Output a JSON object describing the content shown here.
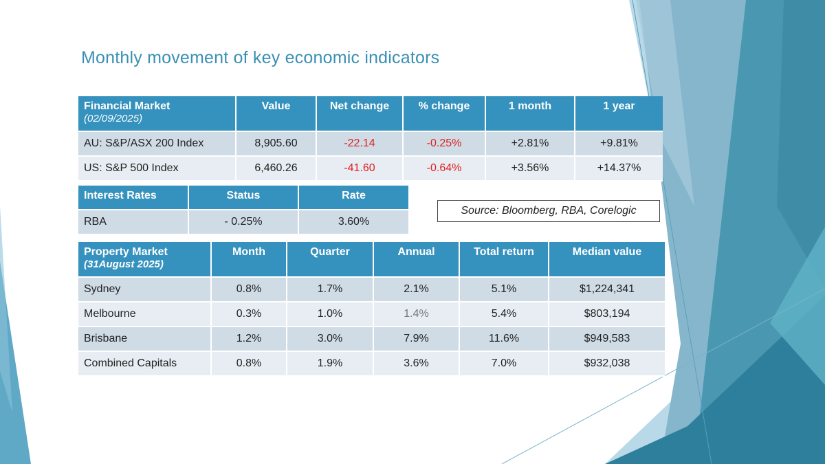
{
  "title": "Monthly movement of key economic indicators",
  "financial": {
    "headers": [
      "Financial Market",
      "Value",
      "Net change",
      "% change",
      "1 month",
      "1 year"
    ],
    "date": "(02/09/2025)",
    "rows": [
      [
        "AU:  S&P/ASX 200 Index",
        "8,905.60",
        "-22.14",
        "-0.25%",
        "+2.81%",
        "+9.81%"
      ],
      [
        "US:  S&P 500 Index",
        "6,460.26",
        "-41.60",
        "-0.64%",
        "+3.56%",
        "+14.37%"
      ]
    ]
  },
  "rates": {
    "headers": [
      "Interest Rates",
      "Status",
      "Rate"
    ],
    "rows": [
      [
        "RBA",
        "- 0.25%",
        "3.60%"
      ]
    ]
  },
  "source": "Source:  Bloomberg, RBA, Corelogic",
  "property": {
    "headers": [
      "Property Market",
      "Month",
      "Quarter",
      "Annual",
      "Total return",
      "Median value"
    ],
    "date": "(31August 2025)",
    "rows": [
      [
        "Sydney",
        "0.8%",
        "1.7%",
        "2.1%",
        "5.1%",
        "$1,224,341"
      ],
      [
        "Melbourne",
        "0.3%",
        "1.0%",
        "1.4%",
        "5.4%",
        "$803,194"
      ],
      [
        "Brisbane",
        "1.2%",
        "3.0%",
        "7.9%",
        "11.6%",
        "$949,583"
      ],
      [
        "Combined Capitals",
        "0.8%",
        "1.9%",
        "3.6%",
        "7.0%",
        "$932,038"
      ]
    ]
  },
  "colors": {
    "header_bg": "#3591bd",
    "row_dark": "#cfdbe5",
    "row_light": "#e7edf3",
    "negative": "#e02020",
    "title": "#3a8fb5"
  }
}
